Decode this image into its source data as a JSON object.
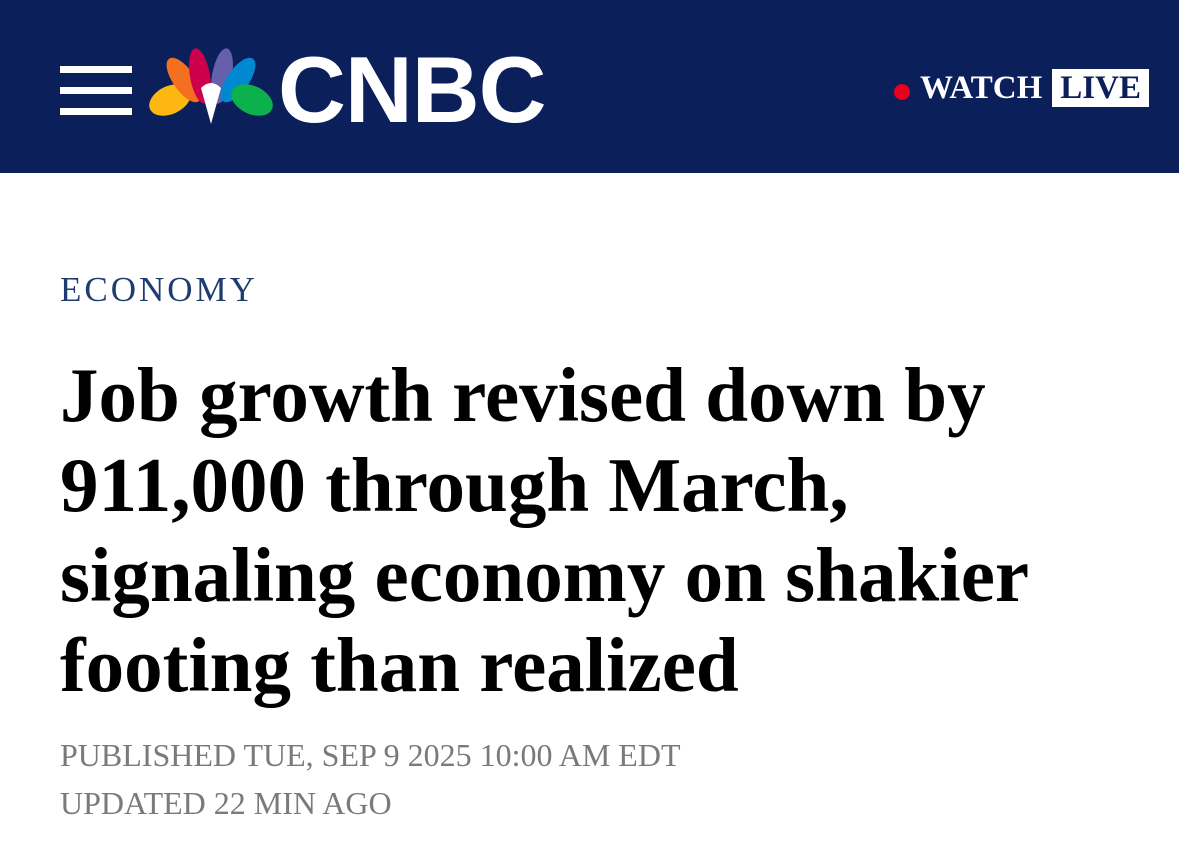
{
  "header": {
    "logo": "CNBC",
    "watch": "WATCH",
    "live": "LIVE"
  },
  "article": {
    "section": "ECONOMY",
    "headline": "Job growth revised down by 911,000 through March, signaling economy on shakier footing than realized",
    "published": "PUBLISHED TUE, SEP 9 2025 10:00 AM EDT",
    "updated": "UPDATED 22 MIN AGO"
  }
}
